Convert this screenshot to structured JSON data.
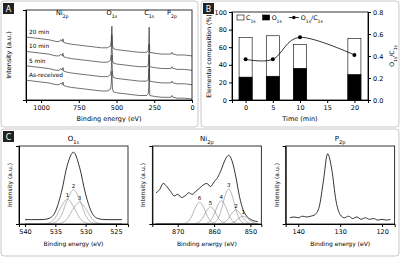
{
  "chart_data": [
    {
      "type": "line",
      "panel_label": "A",
      "xlabel": "Binding energy (eV)",
      "ylabel": "Intensity (a.u.)",
      "x": [
        1100,
        1050,
        1000,
        950,
        900,
        880,
        870,
        860,
        855,
        850,
        830,
        800,
        750,
        700,
        650,
        600,
        560,
        540,
        535,
        531,
        527,
        520,
        500,
        450,
        400,
        350,
        300,
        290,
        287,
        284,
        280,
        250,
        200,
        150,
        140,
        133,
        128,
        120,
        100,
        50,
        0
      ],
      "xlim": [
        1100,
        0
      ],
      "xticks": [
        1000,
        750,
        500,
        250,
        0
      ],
      "ylim": [
        0,
        100
      ],
      "tick_labels": "x",
      "series": [
        {
          "name": "As-received",
          "color": "#333333",
          "values": [
            22,
            21,
            20,
            19,
            17,
            17,
            19,
            17,
            20,
            16,
            15,
            14,
            13,
            12,
            11,
            10,
            10,
            12,
            18,
            32,
            12,
            9,
            8,
            7,
            6,
            5,
            5,
            7,
            14,
            36,
            5,
            4,
            3,
            3,
            3,
            5,
            3,
            3,
            2,
            2,
            1
          ]
        },
        {
          "name": "5 min",
          "color": "#333333",
          "values": [
            38,
            37,
            36,
            35,
            33,
            33,
            35,
            33,
            36,
            32,
            31,
            30,
            29,
            28,
            27,
            26,
            26,
            28,
            34,
            50,
            28,
            25,
            24,
            23,
            22,
            21,
            21,
            23,
            30,
            50,
            21,
            20,
            19,
            19,
            19,
            21,
            19,
            19,
            18,
            18,
            17
          ]
        },
        {
          "name": "10 min",
          "color": "#333333",
          "values": [
            54,
            53,
            52,
            51,
            49,
            49,
            51,
            49,
            52,
            48,
            47,
            46,
            45,
            44,
            43,
            42,
            42,
            44,
            52,
            72,
            44,
            41,
            40,
            39,
            38,
            37,
            37,
            39,
            45,
            62,
            37,
            36,
            35,
            35,
            35,
            37,
            35,
            35,
            34,
            34,
            33
          ]
        },
        {
          "name": "20 min",
          "color": "#333333",
          "values": [
            70,
            69,
            68,
            67,
            65,
            65,
            67,
            65,
            68,
            64,
            63,
            62,
            61,
            60,
            59,
            58,
            58,
            60,
            66,
            82,
            60,
            57,
            56,
            55,
            54,
            53,
            53,
            55,
            62,
            81,
            53,
            52,
            51,
            51,
            51,
            53,
            51,
            51,
            50,
            50,
            49
          ]
        }
      ],
      "annotations": [
        {
          "text": "Ni2p",
          "x": 860,
          "y": 94
        },
        {
          "text": "O1s",
          "x": 531,
          "y": 94
        },
        {
          "text": "C1s",
          "x": 284,
          "y": 94
        },
        {
          "text": "P2p",
          "x": 133,
          "y": 94
        }
      ]
    },
    {
      "type": "bar",
      "panel_label": "B",
      "xlabel": "Time (min)",
      "ylabel": "Elemental composition (%)",
      "y2label": "O1s/C1s",
      "x": [
        0,
        5,
        10,
        20
      ],
      "xlim": [
        -2.5,
        22.5
      ],
      "xticks": [
        0,
        5,
        10,
        15,
        20
      ],
      "ylim": [
        0,
        100
      ],
      "yticks": [
        0,
        20,
        40,
        60,
        80,
        100
      ],
      "y2lim": [
        0,
        0.8
      ],
      "y2ticks": [
        {
          "value": 0,
          "label": "0.0"
        },
        0.2,
        0.4,
        0.6,
        0.8
      ],
      "legend": "top",
      "series": [
        {
          "name": "C1s",
          "type": "bar",
          "color": "#ffffff",
          "values": [
            71,
            73,
            63,
            70
          ]
        },
        {
          "name": "O1s",
          "type": "bar",
          "color": "#000000",
          "values": [
            26,
            27,
            36,
            29
          ]
        },
        {
          "name": "O1s/C1s",
          "type": "line",
          "axis": "y2",
          "color": "#000000",
          "marker": "circle",
          "values": [
            0.37,
            0.37,
            0.57,
            0.41
          ]
        }
      ]
    },
    {
      "type": "line",
      "panel_label": "C",
      "title": "O1s",
      "xlabel": "Binding energy (eV)",
      "ylabel": "Intensity (a.u.)",
      "x": [
        540,
        539,
        538,
        537,
        536,
        535,
        534,
        533,
        532,
        531,
        530,
        529,
        528,
        527,
        526,
        525,
        524
      ],
      "xlim": [
        541,
        523
      ],
      "xticks": [
        540,
        535,
        530,
        525
      ],
      "ylim": [
        0,
        125
      ],
      "tick_labels": "x",
      "series": [
        {
          "color": "#000000",
          "values": [
            7,
            7,
            7,
            7.2,
            9.1,
            19.7,
            50.6,
            95,
            115,
            91,
            47.8,
            18.7,
            8.9,
            7.2,
            7,
            7,
            7
          ]
        },
        {
          "name": "1",
          "color": "#888888",
          "values": [
            0,
            0,
            0,
            0.2,
            1.8,
            10,
            28,
            40,
            28,
            10,
            1.8,
            0.2,
            0,
            0,
            0,
            0,
            0
          ]
        },
        {
          "name": "2",
          "color": "#888888",
          "values": [
            0,
            0,
            0,
            0,
            0.3,
            2.5,
            14,
            39,
            55,
            39,
            14,
            2.5,
            0.3,
            0,
            0,
            0,
            0
          ]
        },
        {
          "name": "3",
          "color": "#888888",
          "values": [
            0,
            0,
            0,
            0,
            0,
            0.2,
            1.6,
            9,
            25,
            35,
            25,
            9,
            1.6,
            0.2,
            0,
            0,
            0
          ]
        }
      ]
    },
    {
      "type": "line",
      "title": "Ni2p",
      "xlabel": "Binding energy (eV)",
      "ylabel": "Intensity (a.u.)",
      "x": [
        876,
        875,
        874,
        873,
        872,
        871,
        870,
        869,
        868,
        867,
        866,
        865,
        864,
        863,
        862,
        861,
        860,
        859,
        858,
        857,
        856,
        855,
        854,
        853,
        852,
        851,
        850,
        849,
        848
      ],
      "xlim": [
        877,
        847
      ],
      "xticks": [
        870,
        860,
        850
      ],
      "ylim": [
        0,
        100
      ],
      "tick_labels": "x",
      "series": [
        {
          "color": "#000000",
          "values": [
            40,
            44,
            52,
            48,
            42,
            36,
            38,
            34,
            36,
            40,
            38,
            42,
            46,
            50,
            52,
            48,
            54,
            60,
            70,
            82,
            88,
            80,
            60,
            35,
            18,
            10,
            6,
            4,
            3
          ]
        },
        {
          "name": "1",
          "color": "#888888",
          "values": [
            0,
            0,
            0,
            0,
            0,
            0,
            0,
            0,
            0,
            0,
            0,
            0,
            0,
            0,
            0,
            0,
            0,
            0,
            0,
            0,
            0.3,
            1.4,
            4.1,
            8,
            10,
            8,
            4.1,
            1.4,
            0.3
          ]
        },
        {
          "name": "2",
          "color": "#888888",
          "values": [
            0,
            0,
            0,
            0,
            0,
            0,
            0,
            0,
            0,
            0,
            0,
            0,
            0,
            0,
            0,
            0,
            0,
            0,
            0.5,
            2.5,
            7.4,
            14.4,
            18,
            14.4,
            7.4,
            2.5,
            0.5,
            0,
            0
          ]
        },
        {
          "name": "3",
          "color": "#888888",
          "values": [
            0,
            0,
            0,
            0,
            0,
            0,
            0,
            0,
            0,
            0,
            0,
            0,
            0,
            0,
            0,
            0,
            1.4,
            6.3,
            18.5,
            36,
            45,
            36,
            18.5,
            6.3,
            1.4,
            0,
            0,
            0,
            0
          ]
        },
        {
          "name": "4",
          "color": "#888888",
          "values": [
            0,
            0,
            0,
            0,
            0,
            0,
            0,
            0,
            0,
            0,
            0,
            0,
            0,
            0,
            0.9,
            4.2,
            12.3,
            24,
            30,
            24,
            12.3,
            4.2,
            0.9,
            0,
            0,
            0,
            0,
            0,
            0
          ]
        },
        {
          "name": "5",
          "color": "#888888",
          "values": [
            0,
            0,
            0,
            0,
            0,
            0,
            0,
            0,
            0,
            0,
            0,
            0.7,
            3.1,
            9,
            17.6,
            22,
            17.6,
            9,
            3.1,
            0.7,
            0,
            0,
            0,
            0,
            0,
            0,
            0,
            0,
            0
          ]
        },
        {
          "name": "6",
          "color": "#888888",
          "values": [
            0,
            0,
            0,
            0,
            0,
            0,
            0,
            0,
            0.8,
            3.9,
            11.5,
            22.4,
            28,
            22.4,
            11.5,
            3.9,
            0.8,
            0,
            0,
            0,
            0,
            0,
            0,
            0,
            0,
            0,
            0,
            0,
            0
          ]
        }
      ]
    },
    {
      "type": "line",
      "title": "P2p",
      "xlabel": "Binding energy (eV)",
      "ylabel": "Intensity (a.u.)",
      "x": [
        142,
        141,
        140,
        139,
        138,
        137,
        136,
        135,
        134,
        133,
        132,
        131,
        130,
        129,
        128,
        127,
        126,
        125,
        124,
        123,
        122,
        121,
        120,
        119,
        118
      ],
      "xlim": [
        143,
        117
      ],
      "xticks": [
        140,
        130,
        120
      ],
      "ylim": [
        0,
        100
      ],
      "tick_labels": "x",
      "series": [
        {
          "color": "#000000",
          "values": [
            8,
            9,
            8,
            10,
            9,
            10,
            12,
            22,
            55,
            90,
            70,
            30,
            12,
            8,
            10,
            7,
            9,
            6,
            8,
            6,
            7,
            5,
            6,
            5,
            6
          ]
        }
      ]
    }
  ]
}
